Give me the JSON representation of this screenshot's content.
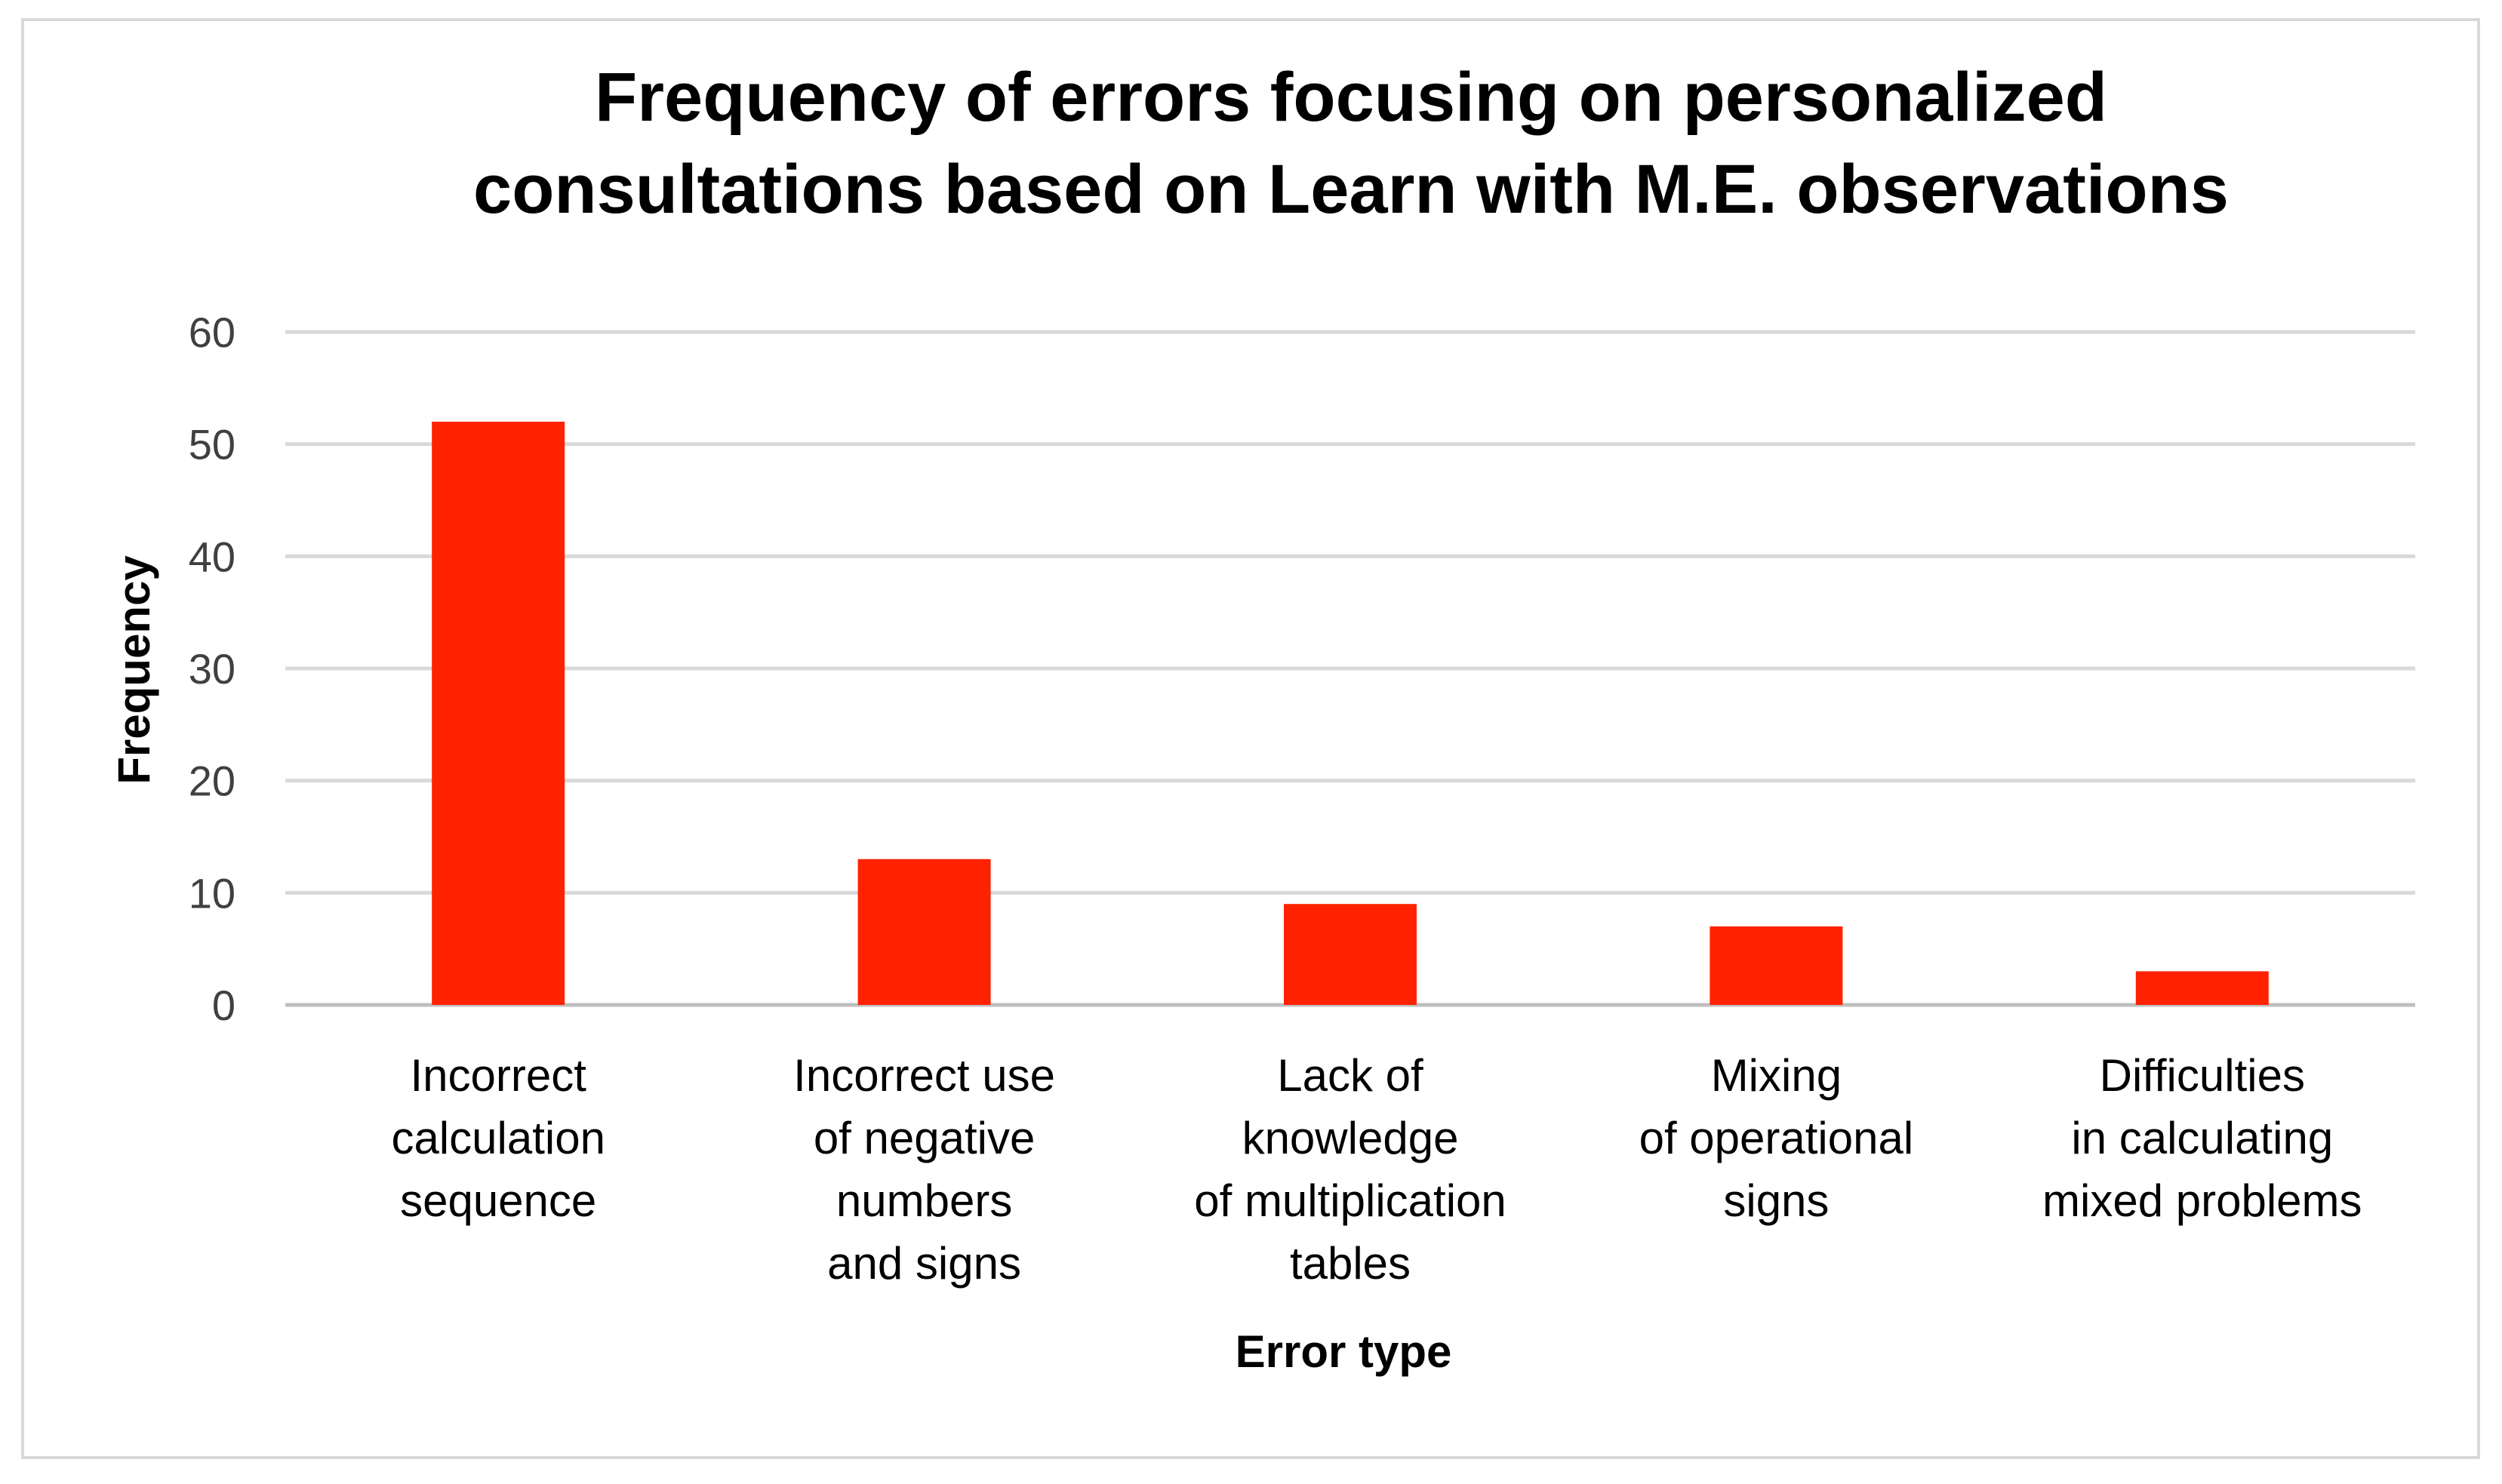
{
  "chart_data": {
    "type": "bar",
    "title_lines": [
      "Frequency of errors focusing on personalized",
      "consultations based on Learn with M.E. observations"
    ],
    "xlabel": "Error type",
    "ylabel": "Frequency",
    "ylim": [
      0,
      60
    ],
    "yticks": [
      "0",
      "10",
      "20",
      "30",
      "40",
      "50",
      "60"
    ],
    "categories": [
      [
        "Incorrect",
        "calculation",
        "sequence"
      ],
      [
        "Incorrect use",
        "of negative",
        "numbers",
        "and signs"
      ],
      [
        "Lack of",
        "knowledge",
        "of multiplication",
        "tables"
      ],
      [
        "Mixing",
        "of operational",
        "signs"
      ],
      [
        "Difficulties",
        "in calculating",
        "mixed problems"
      ]
    ],
    "values": [
      52,
      13,
      9,
      7,
      3
    ],
    "bar_color": "#ff2200",
    "grid": true,
    "legend": "none"
  }
}
